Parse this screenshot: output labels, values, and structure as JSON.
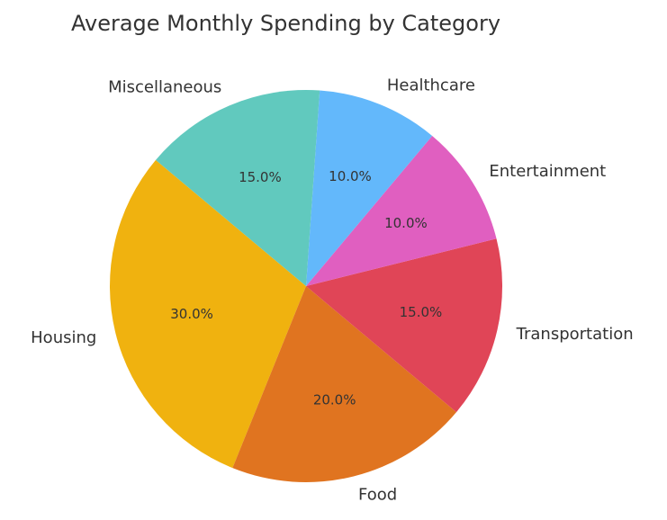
{
  "chart_data": {
    "type": "pie",
    "title": "Average Monthly Spending by Category",
    "categories": [
      "Housing",
      "Food",
      "Transportation",
      "Entertainment",
      "Healthcare",
      "Miscellaneous"
    ],
    "values": [
      30,
      20,
      15,
      10,
      10,
      15
    ],
    "value_labels": [
      "30.0%",
      "20.0%",
      "15.0%",
      "10.0%",
      "10.0%",
      "15.0%"
    ],
    "colors": [
      "#f0b20f",
      "#e07420",
      "#e04557",
      "#e05fc0",
      "#63b8fb",
      "#61c9be"
    ]
  }
}
